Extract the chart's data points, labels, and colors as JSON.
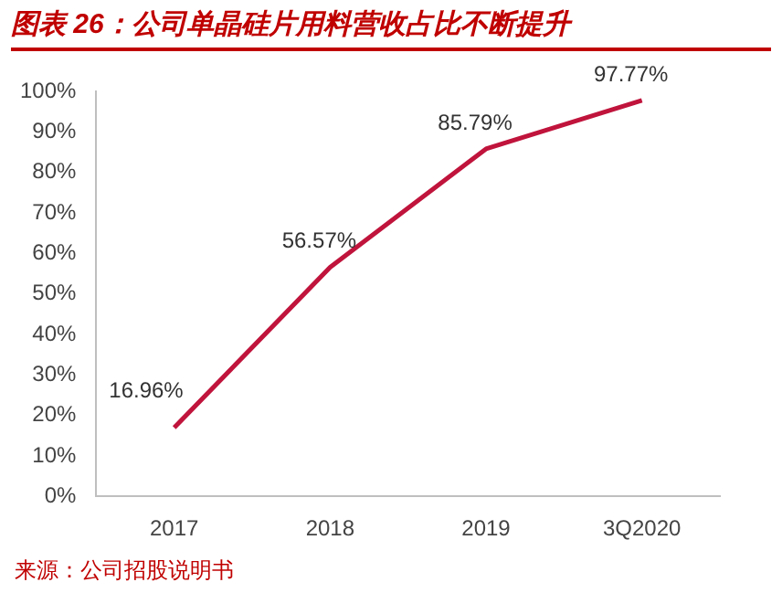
{
  "chart_data": {
    "type": "line",
    "title": "图表 26：公司单晶硅片用料营收占比不断提升",
    "categories": [
      "2017",
      "2018",
      "2019",
      "3Q2020"
    ],
    "series": [
      {
        "color": "#c0143c",
        "values": [
          16.96,
          56.57,
          85.79,
          97.77
        ],
        "value_labels": [
          "16.96%",
          "56.57%",
          "85.79%",
          "97.77%"
        ]
      }
    ],
    "ylim": [
      0,
      100
    ],
    "yticks": [
      {
        "value": 0,
        "label": "0%"
      },
      {
        "value": 10,
        "label": "10%"
      },
      {
        "value": 20,
        "label": "20%"
      },
      {
        "value": 30,
        "label": "30%"
      },
      {
        "value": 40,
        "label": "40%"
      },
      {
        "value": 50,
        "label": "50%"
      },
      {
        "value": 60,
        "label": "60%"
      },
      {
        "value": 70,
        "label": "70%"
      },
      {
        "value": 80,
        "label": "80%"
      },
      {
        "value": 90,
        "label": "90%"
      },
      {
        "value": 100,
        "label": "100%"
      }
    ],
    "grid": false,
    "legend": false,
    "marker": "none",
    "line_style": "solid",
    "annotations": [
      "来源：公司招股说明书"
    ]
  }
}
